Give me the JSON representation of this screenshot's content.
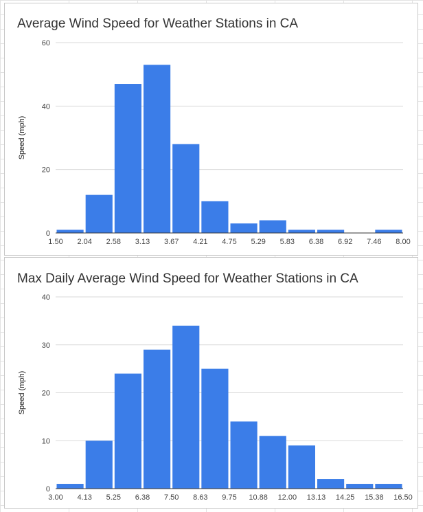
{
  "chart_data": [
    {
      "type": "bar",
      "title": "Average Wind Speed for Weather Stations in CA",
      "xlabel": "",
      "ylabel": "Speed (mph)",
      "ylim": [
        0,
        60
      ],
      "yticks": [
        "0",
        "20",
        "40",
        "60"
      ],
      "xticks": [
        "1.50",
        "2.04",
        "2.58",
        "3.13",
        "3.67",
        "4.21",
        "4.75",
        "5.29",
        "5.83",
        "6.38",
        "6.92",
        "7.46",
        "8.00"
      ],
      "values": [
        1,
        12,
        47,
        53,
        28,
        10,
        3,
        4,
        1,
        1,
        0,
        1
      ],
      "color": "#3b7de8",
      "grid": true
    },
    {
      "type": "bar",
      "title": "Max Daily Average Wind Speed for Weather Stations in CA",
      "xlabel": "",
      "ylabel": "Speed (mph)",
      "ylim": [
        0,
        40
      ],
      "yticks": [
        "0",
        "10",
        "20",
        "30",
        "40"
      ],
      "xticks": [
        "3.00",
        "4.13",
        "5.25",
        "6.38",
        "7.50",
        "8.63",
        "9.75",
        "10.88",
        "12.00",
        "13.13",
        "14.25",
        "15.38",
        "16.50"
      ],
      "values": [
        1,
        10,
        24,
        29,
        34,
        25,
        14,
        11,
        9,
        2,
        1,
        1
      ],
      "color": "#3b7de8",
      "grid": true
    }
  ]
}
